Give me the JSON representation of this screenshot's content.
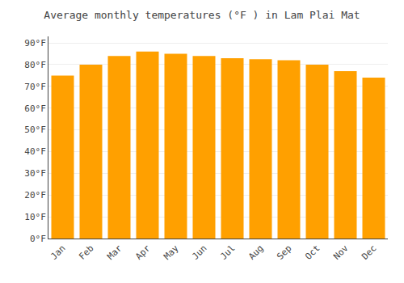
{
  "chart_data": {
    "type": "bar",
    "title": "Average monthly temperatures (°F ) in Lam Plai Mat",
    "categories": [
      "Jan",
      "Feb",
      "Mar",
      "Apr",
      "May",
      "Jun",
      "Jul",
      "Aug",
      "Sep",
      "Oct",
      "Nov",
      "Dec"
    ],
    "values": [
      75,
      80,
      84,
      86,
      85,
      84,
      83,
      82.5,
      82,
      80,
      77,
      74
    ],
    "color": "#FFA000",
    "ylim": [
      0,
      93
    ],
    "yticks": [
      {
        "value": 0,
        "label": "0°F"
      },
      {
        "value": 10,
        "label": "10°F"
      },
      {
        "value": 20,
        "label": "20°F"
      },
      {
        "value": 30,
        "label": "30°F"
      },
      {
        "value": 40,
        "label": "40°F"
      },
      {
        "value": 50,
        "label": "50°F"
      },
      {
        "value": 60,
        "label": "60°F"
      },
      {
        "value": 70,
        "label": "70°F"
      },
      {
        "value": 80,
        "label": "80°F"
      },
      {
        "value": 90,
        "label": "90°F"
      }
    ],
    "grid": true
  }
}
